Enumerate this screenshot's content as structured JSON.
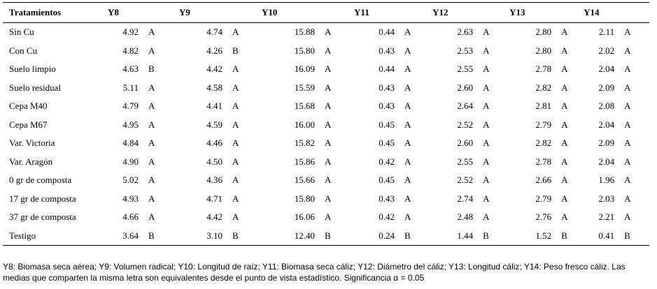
{
  "table": {
    "headers": [
      "Tratamientos",
      "Y8",
      "Y9",
      "Y10",
      "Y11",
      "Y12",
      "Y13",
      "Y14"
    ],
    "rows": [
      {
        "name": "Sin Cu",
        "cells": [
          [
            "4.92",
            "A"
          ],
          [
            "4.74",
            "A"
          ],
          [
            "15.88",
            "A"
          ],
          [
            "0.44",
            "A"
          ],
          [
            "2.63",
            "A"
          ],
          [
            "2.80",
            "A"
          ],
          [
            "2.11",
            "A"
          ]
        ]
      },
      {
        "name": "Con Cu",
        "cells": [
          [
            "4.82",
            "A"
          ],
          [
            "4.26",
            "B"
          ],
          [
            "15.80",
            "A"
          ],
          [
            "0.43",
            "A"
          ],
          [
            "2.53",
            "A"
          ],
          [
            "2.80",
            "A"
          ],
          [
            "2.02",
            "A"
          ]
        ]
      },
      {
        "name": "Suelo limpio",
        "cells": [
          [
            "4.63",
            "B"
          ],
          [
            "4.42",
            "A"
          ],
          [
            "16.09",
            "A"
          ],
          [
            "0.44",
            "A"
          ],
          [
            "2.55",
            "A"
          ],
          [
            "2.78",
            "A"
          ],
          [
            "2.04",
            "A"
          ]
        ]
      },
      {
        "name": "Suelo residual",
        "cells": [
          [
            "5.11",
            "A"
          ],
          [
            "4.58",
            "A"
          ],
          [
            "15.59",
            "A"
          ],
          [
            "0.43",
            "A"
          ],
          [
            "2.60",
            "A"
          ],
          [
            "2.82",
            "A"
          ],
          [
            "2.09",
            "A"
          ]
        ]
      },
      {
        "name": "Cepa M40",
        "cells": [
          [
            "4.79",
            "A"
          ],
          [
            "4.41",
            "A"
          ],
          [
            "15.68",
            "A"
          ],
          [
            "0.43",
            "A"
          ],
          [
            "2.64",
            "A"
          ],
          [
            "2.81",
            "A"
          ],
          [
            "2.08",
            "A"
          ]
        ]
      },
      {
        "name": "Cepa M67",
        "cells": [
          [
            "4.95",
            "A"
          ],
          [
            "4.59",
            "A"
          ],
          [
            "16.00",
            "A"
          ],
          [
            "0.45",
            "A"
          ],
          [
            "2.52",
            "A"
          ],
          [
            "2.79",
            "A"
          ],
          [
            "2.04",
            "A"
          ]
        ]
      },
      {
        "name": "Var. Victoria",
        "cells": [
          [
            "4.84",
            "A"
          ],
          [
            "4.46",
            "A"
          ],
          [
            "15.82",
            "A"
          ],
          [
            "0.45",
            "A"
          ],
          [
            "2.60",
            "A"
          ],
          [
            "2.82",
            "A"
          ],
          [
            "2.09",
            "A"
          ]
        ]
      },
      {
        "name": "Var. Aragón",
        "cells": [
          [
            "4.90",
            "A"
          ],
          [
            "4.50",
            "A"
          ],
          [
            "15.86",
            "A"
          ],
          [
            "0.42",
            "A"
          ],
          [
            "2.55",
            "A"
          ],
          [
            "2.78",
            "A"
          ],
          [
            "2.04",
            "A"
          ]
        ]
      },
      {
        "name": "0 gr de composta",
        "cells": [
          [
            "5.02",
            "A"
          ],
          [
            "4.36",
            "A"
          ],
          [
            "15.66",
            "A"
          ],
          [
            "0.45",
            "A"
          ],
          [
            "2.52",
            "A"
          ],
          [
            "2.66",
            "A"
          ],
          [
            "1.96",
            "A"
          ]
        ]
      },
      {
        "name": "17 gr de composta",
        "cells": [
          [
            "4.93",
            "A"
          ],
          [
            "4.71",
            "A"
          ],
          [
            "15.80",
            "A"
          ],
          [
            "0.43",
            "A"
          ],
          [
            "2.74",
            "A"
          ],
          [
            "2.79",
            "A"
          ],
          [
            "2.03",
            "A"
          ]
        ]
      },
      {
        "name": "37 gr de composta",
        "cells": [
          [
            "4.66",
            "A"
          ],
          [
            "4.42",
            "A"
          ],
          [
            "16.06",
            "A"
          ],
          [
            "0.42",
            "A"
          ],
          [
            "2.48",
            "A"
          ],
          [
            "2.76",
            "A"
          ],
          [
            "2.21",
            "A"
          ]
        ]
      },
      {
        "name": "Testigo",
        "cells": [
          [
            "3.64",
            "B"
          ],
          [
            "3.10",
            "B"
          ],
          [
            "12.40",
            "B"
          ],
          [
            "0.24",
            "B"
          ],
          [
            "1.44",
            "B"
          ],
          [
            "1.52",
            "B"
          ],
          [
            "0.41",
            "B"
          ]
        ]
      }
    ]
  },
  "footnote": "Y8: Biomasa seca aérea; Y9: Volumen radical; Y10: Longitud de raíz; Y11: Biomasa seca cáliz; Y12: Diámetro del cáliz; Y13: Longitud cáliz; Y14: Peso fresco cáliz. Las medias que comparten la misma letra son equivalentes desde el punto de vista estadístico. Significancia α = 0.05"
}
